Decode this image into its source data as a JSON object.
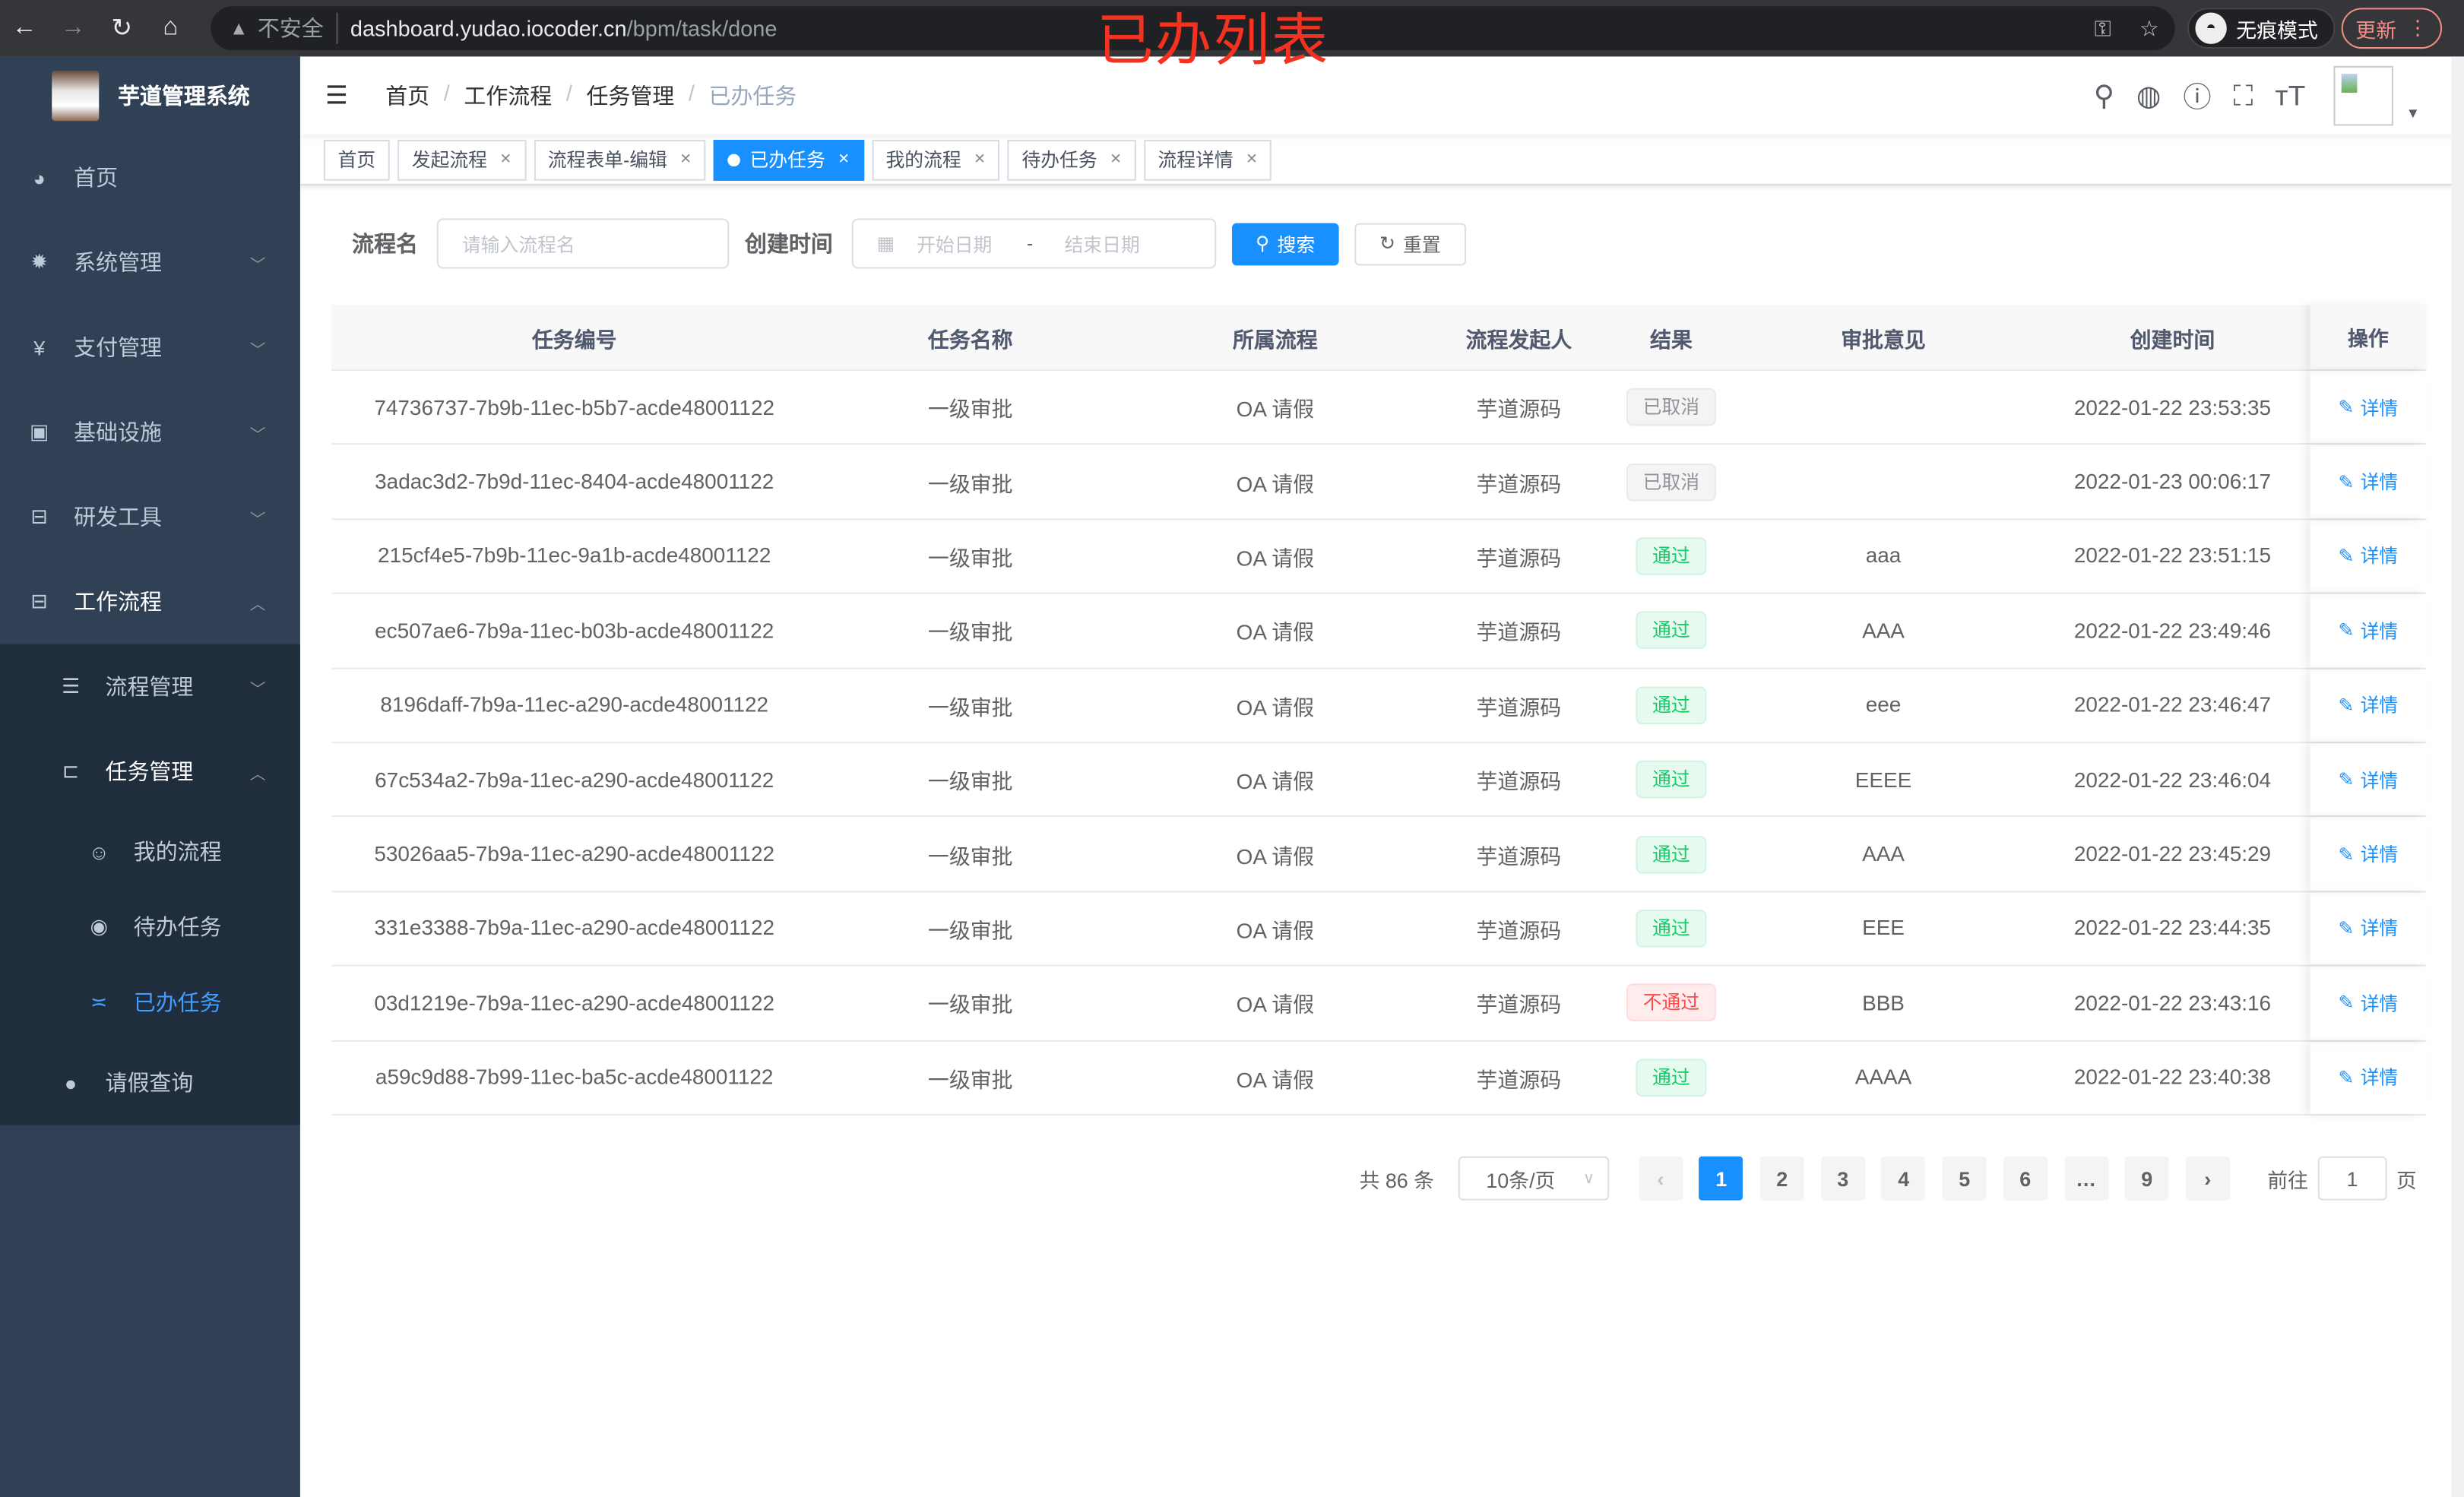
{
  "browser": {
    "insecure": "不安全",
    "host": "dashboard.yudao.iocoder.cn",
    "path": "/bpm/task/done",
    "incognito": "无痕模式",
    "update": "更新"
  },
  "annotation": "已办列表",
  "sidebar": {
    "title": "芋道管理系统",
    "items": [
      {
        "label": "首页",
        "icon": "dashboard-icon"
      },
      {
        "label": "系统管理",
        "icon": "gear-icon"
      },
      {
        "label": "支付管理",
        "icon": "yen-icon"
      },
      {
        "label": "基础设施",
        "icon": "monitor-icon"
      },
      {
        "label": "研发工具",
        "icon": "toolbox-icon"
      },
      {
        "label": "工作流程",
        "icon": "toolbox-icon"
      },
      {
        "label": "流程管理",
        "icon": "list-icon"
      },
      {
        "label": "任务管理",
        "icon": "tree-icon"
      },
      {
        "label": "我的流程",
        "icon": "user-icon"
      },
      {
        "label": "待办任务",
        "icon": "eye-icon"
      },
      {
        "label": "已办任务",
        "icon": "eye-closed-icon"
      },
      {
        "label": "请假查询",
        "icon": "user-icon"
      }
    ]
  },
  "breadcrumb": [
    "首页",
    "工作流程",
    "任务管理",
    "已办任务"
  ],
  "tags": [
    {
      "label": "首页"
    },
    {
      "label": "发起流程"
    },
    {
      "label": "流程表单-编辑"
    },
    {
      "label": "已办任务"
    },
    {
      "label": "我的流程"
    },
    {
      "label": "待办任务"
    },
    {
      "label": "流程详情"
    }
  ],
  "search": {
    "name_label": "流程名",
    "name_placeholder": "请输入流程名",
    "time_label": "创建时间",
    "start_placeholder": "开始日期",
    "sep": "-",
    "end_placeholder": "结束日期",
    "search": "搜索",
    "reset": "重置"
  },
  "table": {
    "headers": [
      "任务编号",
      "任务名称",
      "所属流程",
      "流程发起人",
      "结果",
      "审批意见",
      "创建时间",
      "操作"
    ],
    "action": "详情",
    "rows": [
      [
        "74736737-7b9b-11ec-b5b7-acde48001122",
        "一级审批",
        "OA 请假",
        "芋道源码",
        "已取消",
        "",
        "2022-01-22 23:53:35"
      ],
      [
        "3adac3d2-7b9d-11ec-8404-acde48001122",
        "一级审批",
        "OA 请假",
        "芋道源码",
        "已取消",
        "",
        "2022-01-23 00:06:17"
      ],
      [
        "215cf4e5-7b9b-11ec-9a1b-acde48001122",
        "一级审批",
        "OA 请假",
        "芋道源码",
        "通过",
        "aaa",
        "2022-01-22 23:51:15"
      ],
      [
        "ec507ae6-7b9a-11ec-b03b-acde48001122",
        "一级审批",
        "OA 请假",
        "芋道源码",
        "通过",
        "AAA",
        "2022-01-22 23:49:46"
      ],
      [
        "8196daff-7b9a-11ec-a290-acde48001122",
        "一级审批",
        "OA 请假",
        "芋道源码",
        "通过",
        "eee",
        "2022-01-22 23:46:47"
      ],
      [
        "67c534a2-7b9a-11ec-a290-acde48001122",
        "一级审批",
        "OA 请假",
        "芋道源码",
        "通过",
        "EEEE",
        "2022-01-22 23:46:04"
      ],
      [
        "53026aa5-7b9a-11ec-a290-acde48001122",
        "一级审批",
        "OA 请假",
        "芋道源码",
        "通过",
        "AAA",
        "2022-01-22 23:45:29"
      ],
      [
        "331e3388-7b9a-11ec-a290-acde48001122",
        "一级审批",
        "OA 请假",
        "芋道源码",
        "通过",
        "EEE",
        "2022-01-22 23:44:35"
      ],
      [
        "03d1219e-7b9a-11ec-a290-acde48001122",
        "一级审批",
        "OA 请假",
        "芋道源码",
        "不通过",
        "BBB",
        "2022-01-22 23:43:16"
      ],
      [
        "a59c9d88-7b99-11ec-ba5c-acde48001122",
        "一级审批",
        "OA 请假",
        "芋道源码",
        "通过",
        "AAAA",
        "2022-01-22 23:40:38"
      ]
    ]
  },
  "result_colors": {
    "已取消": [
      "#909399",
      "#f4f4f5",
      "#e9e9eb"
    ],
    "通过": [
      "#13ce66",
      "#e7faf0",
      "#d0f5e0"
    ],
    "不通过": [
      "#ff4949",
      "#ffeded",
      "#ffdbdb"
    ]
  },
  "pagination": {
    "total": "共 86 条",
    "size": "10条/页",
    "pages": [
      "1",
      "2",
      "3",
      "4",
      "5",
      "6",
      "…",
      "9"
    ],
    "current": "1",
    "goto": "前往",
    "goto_value": "1",
    "page_unit": "页"
  }
}
